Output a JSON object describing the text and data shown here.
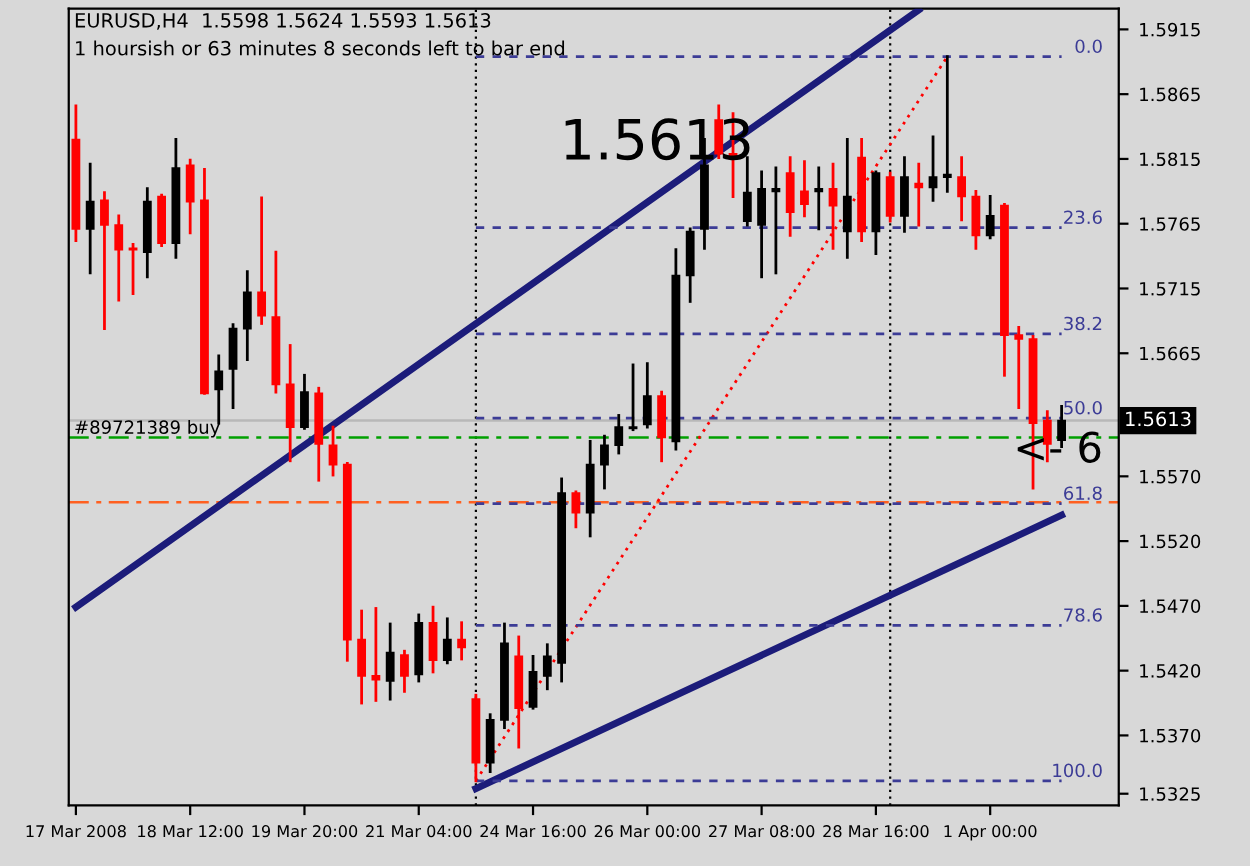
{
  "chart_data": {
    "type": "candlestick",
    "title": "EURUSD,H4  1.5598 1.5624 1.5593 1.5613",
    "subtitle": "1 hoursish or 63 minutes 8 seconds left to bar end",
    "categories": [
      "17 Mar 2008",
      null,
      null,
      null,
      null,
      null,
      null,
      null,
      "18 Mar 12:00",
      null,
      null,
      null,
      null,
      null,
      null,
      null,
      "19 Mar 20:00",
      null,
      null,
      null,
      null,
      null,
      null,
      null,
      "21 Mar 04:00",
      null,
      null,
      null,
      null,
      null,
      null,
      null,
      "24 Mar 16:00",
      null,
      null,
      null,
      null,
      null,
      null,
      null,
      "26 Mar 00:00",
      null,
      null,
      null,
      null,
      null,
      null,
      null,
      "27 Mar 08:00",
      null,
      null,
      null,
      null,
      null,
      null,
      null,
      "28 Mar 16:00",
      null,
      null,
      null,
      null,
      null,
      null,
      null,
      "1 Apr 00:00",
      null,
      null,
      null,
      null,
      null
    ],
    "ohlc": [
      [
        1.583,
        1.5856,
        1.5752,
        1.5761
      ],
      [
        1.5761,
        1.5811,
        1.5727,
        1.5782
      ],
      [
        1.5783,
        1.5789,
        1.5684,
        1.5764
      ],
      [
        1.5764,
        1.5771,
        1.5706,
        1.5745
      ],
      [
        1.5746,
        1.5749,
        1.5711,
        1.5745
      ],
      [
        1.5743,
        1.5792,
        1.5724,
        1.5782
      ],
      [
        1.5786,
        1.5787,
        1.5748,
        1.575
      ],
      [
        1.575,
        1.583,
        1.5739,
        1.5808
      ],
      [
        1.581,
        1.5814,
        1.5758,
        1.5782
      ],
      [
        1.5783,
        1.5807,
        1.5634,
        1.5634
      ],
      [
        1.5637,
        1.5663,
        1.5611,
        1.5651
      ],
      [
        1.5653,
        1.5687,
        1.5623,
        1.5684
      ],
      [
        1.5684,
        1.5728,
        1.566,
        1.5712
      ],
      [
        1.5712,
        1.5785,
        1.5688,
        1.5694
      ],
      [
        1.5693,
        1.5743,
        1.5635,
        1.5641
      ],
      [
        1.5641,
        1.5671,
        1.5582,
        1.5608
      ],
      [
        1.5608,
        1.5648,
        1.5607,
        1.5635
      ],
      [
        1.5634,
        1.5638,
        1.5567,
        1.5595
      ],
      [
        1.5594,
        1.5608,
        1.5571,
        1.5579
      ],
      [
        1.5579,
        1.558,
        1.5428,
        1.5444
      ],
      [
        1.5444,
        1.5466,
        1.5395,
        1.5416
      ],
      [
        1.5416,
        1.5468,
        1.5397,
        1.5413
      ],
      [
        1.5412,
        1.5456,
        1.5398,
        1.5434
      ],
      [
        1.5432,
        1.5435,
        1.5404,
        1.5416
      ],
      [
        1.5417,
        1.5463,
        1.5412,
        1.5457
      ],
      [
        1.5457,
        1.5469,
        1.5419,
        1.5428
      ],
      [
        1.5428,
        1.546,
        1.5426,
        1.5444
      ],
      [
        1.5444,
        1.5457,
        1.5429,
        1.5438
      ],
      [
        1.5398,
        1.5401,
        1.5335,
        1.5349
      ],
      [
        1.5349,
        1.5386,
        1.5342,
        1.5382
      ],
      [
        1.5382,
        1.5456,
        1.5376,
        1.5441
      ],
      [
        1.5431,
        1.5446,
        1.5361,
        1.5391
      ],
      [
        1.5392,
        1.5431,
        1.5391,
        1.5419
      ],
      [
        1.5416,
        1.544,
        1.5406,
        1.5431
      ],
      [
        1.5426,
        1.5568,
        1.5412,
        1.5557
      ],
      [
        1.5557,
        1.5558,
        1.5531,
        1.5542
      ],
      [
        1.5542,
        1.5597,
        1.5524,
        1.5579
      ],
      [
        1.5579,
        1.5601,
        1.5561,
        1.5594
      ],
      [
        1.5594,
        1.5617,
        1.5588,
        1.5608
      ],
      [
        1.5607,
        1.5656,
        1.5606,
        1.5608
      ],
      [
        1.561,
        1.5657,
        1.5608,
        1.5632
      ],
      [
        1.5632,
        1.5635,
        1.5582,
        1.56
      ],
      [
        1.5597,
        1.5745,
        1.5591,
        1.5725
      ],
      [
        1.5725,
        1.5761,
        1.5705,
        1.5759
      ],
      [
        1.5761,
        1.583,
        1.5746,
        1.581
      ],
      [
        1.5845,
        1.5856,
        1.5816,
        1.5819
      ],
      [
        1.5819,
        1.585,
        1.5786,
        1.5816
      ],
      [
        1.5767,
        1.5816,
        1.5764,
        1.5789
      ],
      [
        1.5764,
        1.5805,
        1.5724,
        1.5792
      ],
      [
        1.579,
        1.5808,
        1.5727,
        1.5792
      ],
      [
        1.5804,
        1.5816,
        1.5756,
        1.5774
      ],
      [
        1.579,
        1.5813,
        1.5771,
        1.578
      ],
      [
        1.579,
        1.5808,
        1.5761,
        1.5792
      ],
      [
        1.5792,
        1.5811,
        1.5746,
        1.5779
      ],
      [
        1.5759,
        1.583,
        1.5739,
        1.5786
      ],
      [
        1.5816,
        1.583,
        1.5752,
        1.5759
      ],
      [
        1.5759,
        1.5805,
        1.5742,
        1.5804
      ],
      [
        1.5801,
        1.5804,
        1.5767,
        1.5771
      ],
      [
        1.5771,
        1.5816,
        1.5759,
        1.5801
      ],
      [
        1.5796,
        1.5811,
        1.5764,
        1.5793
      ],
      [
        1.5793,
        1.5832,
        1.5783,
        1.5801
      ],
      [
        1.5801,
        1.5894,
        1.579,
        1.5803
      ],
      [
        1.5801,
        1.5816,
        1.5768,
        1.5786
      ],
      [
        1.5786,
        1.579,
        1.5746,
        1.5756
      ],
      [
        1.5756,
        1.5786,
        1.5754,
        1.5771
      ],
      [
        1.5779,
        1.578,
        1.5648,
        1.5679
      ],
      [
        1.5679,
        1.5685,
        1.5623,
        1.5676
      ],
      [
        1.5676,
        1.5678,
        1.5561,
        1.5611
      ],
      [
        1.5613,
        1.562,
        1.5582,
        1.5595
      ],
      [
        1.5598,
        1.5624,
        1.5593,
        1.5613
      ]
    ],
    "colors": [
      "#ff0000",
      "#000000",
      "#ff0000",
      "#ff0000",
      "#ff0000",
      "#000000",
      "#ff0000",
      "#000000",
      "#ff0000",
      "#ff0000",
      "#000000",
      "#000000",
      "#000000",
      "#ff0000",
      "#ff0000",
      "#ff0000",
      "#000000",
      "#ff0000",
      "#ff0000",
      "#ff0000",
      "#ff0000",
      "#ff0000",
      "#000000",
      "#ff0000",
      "#000000",
      "#ff0000",
      "#000000",
      "#ff0000",
      "#ff0000",
      "#000000",
      "#000000",
      "#ff0000",
      "#000000",
      "#000000",
      "#000000",
      "#ff0000",
      "#000000",
      "#000000",
      "#000000",
      "#000000",
      "#000000",
      "#ff0000",
      "#000000",
      "#000000",
      "#000000",
      "#ff0000",
      "#ff0000",
      "#000000",
      "#000000",
      "#000000",
      "#ff0000",
      "#ff0000",
      "#000000",
      "#ff0000",
      "#000000",
      "#ff0000",
      "#000000",
      "#ff0000",
      "#000000",
      "#ff0000",
      "#000000",
      "#000000",
      "#ff0000",
      "#ff0000",
      "#000000",
      "#ff0000",
      "#ff0000",
      "#ff0000",
      "#ff0000",
      "#000000"
    ],
    "series": [
      {
        "type": "line",
        "color": "#1c1c7a",
        "values": [
          1.5469,
          null,
          null,
          null,
          null,
          null,
          null,
          null,
          null,
          null,
          null,
          null,
          null,
          null,
          null,
          null,
          null,
          null,
          null,
          null,
          null,
          null,
          null,
          null,
          null,
          null,
          null,
          null,
          null,
          null,
          null,
          null,
          null,
          null,
          null,
          null,
          null,
          null,
          null,
          null,
          null,
          null,
          null,
          null,
          null,
          null,
          null,
          null,
          null,
          null,
          null,
          null,
          null,
          null,
          null,
          null,
          null,
          null,
          null,
          1.593,
          null,
          null,
          null,
          null,
          null,
          null,
          null,
          null,
          null,
          null
        ]
      },
      {
        "type": "line",
        "color": "#1c1c7a",
        "values": [
          null,
          null,
          null,
          null,
          null,
          null,
          null,
          null,
          null,
          null,
          null,
          null,
          null,
          null,
          null,
          null,
          null,
          null,
          null,
          null,
          null,
          null,
          null,
          null,
          null,
          null,
          null,
          null,
          1.5329,
          null,
          null,
          null,
          null,
          null,
          null,
          null,
          null,
          null,
          null,
          null,
          null,
          null,
          null,
          null,
          null,
          null,
          null,
          null,
          null,
          null,
          null,
          null,
          null,
          null,
          null,
          null,
          null,
          null,
          null,
          null,
          null,
          null,
          null,
          null,
          null,
          null,
          null,
          null,
          null,
          1.554
        ]
      },
      {
        "type": "line",
        "color": "#ff0000",
        "line_style": "dotted",
        "values": [
          null,
          null,
          null,
          null,
          null,
          null,
          null,
          null,
          null,
          null,
          null,
          null,
          null,
          null,
          null,
          null,
          null,
          null,
          null,
          null,
          null,
          null,
          null,
          null,
          null,
          null,
          null,
          null,
          1.5335,
          null,
          null,
          null,
          null,
          null,
          null,
          null,
          null,
          null,
          null,
          null,
          null,
          null,
          null,
          null,
          null,
          null,
          null,
          null,
          null,
          null,
          null,
          null,
          null,
          null,
          null,
          null,
          null,
          null,
          null,
          null,
          null,
          1.5894,
          null,
          null,
          null,
          null,
          null,
          null,
          null,
          null
        ]
      },
      {
        "type": "line",
        "name": "0.0",
        "color": "#3c3c96",
        "line_style": "dashed",
        "values": [
          null,
          null,
          null,
          null,
          null,
          null,
          null,
          null,
          null,
          null,
          null,
          null,
          null,
          null,
          null,
          null,
          null,
          null,
          null,
          null,
          null,
          null,
          null,
          null,
          null,
          null,
          null,
          null,
          1.5894,
          1.5894,
          1.5894,
          1.5894,
          1.5894,
          1.5894,
          1.5894,
          1.5894,
          1.5894,
          1.5894,
          1.5894,
          1.5894,
          1.5894,
          1.5894,
          1.5894,
          1.5894,
          1.5894,
          1.5894,
          1.5894,
          1.5894,
          1.5894,
          1.5894,
          1.5894,
          1.5894,
          1.5894,
          1.5894,
          1.5894,
          1.5894,
          1.5894,
          1.5894,
          1.5894,
          1.5894,
          1.5894,
          1.5894,
          1.5894,
          1.5894,
          1.5894,
          1.5894,
          1.5894,
          1.5894,
          1.5894,
          1.5894
        ]
      },
      {
        "type": "line",
        "name": "23.6",
        "color": "#3c3c96",
        "line_style": "dashed",
        "values": [
          null,
          null,
          null,
          null,
          null,
          null,
          null,
          null,
          null,
          null,
          null,
          null,
          null,
          null,
          null,
          null,
          null,
          null,
          null,
          null,
          null,
          null,
          null,
          null,
          null,
          null,
          null,
          null,
          1.5762,
          1.5762,
          1.5762,
          1.5762,
          1.5762,
          1.5762,
          1.5762,
          1.5762,
          1.5762,
          1.5762,
          1.5762,
          1.5762,
          1.5762,
          1.5762,
          1.5762,
          1.5762,
          1.5762,
          1.5762,
          1.5762,
          1.5762,
          1.5762,
          1.5762,
          1.5762,
          1.5762,
          1.5762,
          1.5762,
          1.5762,
          1.5762,
          1.5762,
          1.5762,
          1.5762,
          1.5762,
          1.5762,
          1.5762,
          1.5762,
          1.5762,
          1.5762,
          1.5762,
          1.5762,
          1.5762,
          1.5762,
          1.5762
        ]
      },
      {
        "type": "line",
        "name": "38.2",
        "color": "#3c3c96",
        "line_style": "dashed",
        "values": [
          null,
          null,
          null,
          null,
          null,
          null,
          null,
          null,
          null,
          null,
          null,
          null,
          null,
          null,
          null,
          null,
          null,
          null,
          null,
          null,
          null,
          null,
          null,
          null,
          null,
          null,
          null,
          null,
          1.568,
          1.568,
          1.568,
          1.568,
          1.568,
          1.568,
          1.568,
          1.568,
          1.568,
          1.568,
          1.568,
          1.568,
          1.568,
          1.568,
          1.568,
          1.568,
          1.568,
          1.568,
          1.568,
          1.568,
          1.568,
          1.568,
          1.568,
          1.568,
          1.568,
          1.568,
          1.568,
          1.568,
          1.568,
          1.568,
          1.568,
          1.568,
          1.568,
          1.568,
          1.568,
          1.568,
          1.568,
          1.568,
          1.568,
          1.568,
          1.568,
          1.568
        ]
      },
      {
        "type": "line",
        "name": "50.0",
        "color": "#3c3c96",
        "line_style": "dashed",
        "values": [
          null,
          null,
          null,
          null,
          null,
          null,
          null,
          null,
          null,
          null,
          null,
          null,
          null,
          null,
          null,
          null,
          null,
          null,
          null,
          null,
          null,
          null,
          null,
          null,
          null,
          null,
          null,
          null,
          1.5615,
          1.5615,
          1.5615,
          1.5615,
          1.5615,
          1.5615,
          1.5615,
          1.5615,
          1.5615,
          1.5615,
          1.5615,
          1.5615,
          1.5615,
          1.5615,
          1.5615,
          1.5615,
          1.5615,
          1.5615,
          1.5615,
          1.5615,
          1.5615,
          1.5615,
          1.5615,
          1.5615,
          1.5615,
          1.5615,
          1.5615,
          1.5615,
          1.5615,
          1.5615,
          1.5615,
          1.5615,
          1.5615,
          1.5615,
          1.5615,
          1.5615,
          1.5615,
          1.5615,
          1.5615,
          1.5615,
          1.5615,
          1.5615
        ]
      },
      {
        "type": "line",
        "name": "61.8",
        "color": "#3c3c96",
        "line_style": "dashed",
        "values": [
          null,
          null,
          null,
          null,
          null,
          null,
          null,
          null,
          null,
          null,
          null,
          null,
          null,
          null,
          null,
          null,
          null,
          null,
          null,
          null,
          null,
          null,
          null,
          null,
          null,
          null,
          null,
          null,
          1.5549,
          1.5549,
          1.5549,
          1.5549,
          1.5549,
          1.5549,
          1.5549,
          1.5549,
          1.5549,
          1.5549,
          1.5549,
          1.5549,
          1.5549,
          1.5549,
          1.5549,
          1.5549,
          1.5549,
          1.5549,
          1.5549,
          1.5549,
          1.5549,
          1.5549,
          1.5549,
          1.5549,
          1.5549,
          1.5549,
          1.5549,
          1.5549,
          1.5549,
          1.5549,
          1.5549,
          1.5549,
          1.5549,
          1.5549,
          1.5549,
          1.5549,
          1.5549,
          1.5549,
          1.5549,
          1.5549,
          1.5549,
          1.5549
        ]
      },
      {
        "type": "line",
        "name": "78.6",
        "color": "#3c3c96",
        "line_style": "dashed",
        "values": [
          null,
          null,
          null,
          null,
          null,
          null,
          null,
          null,
          null,
          null,
          null,
          null,
          null,
          null,
          null,
          null,
          null,
          null,
          null,
          null,
          null,
          null,
          null,
          null,
          null,
          null,
          null,
          null,
          1.5455,
          1.5455,
          1.5455,
          1.5455,
          1.5455,
          1.5455,
          1.5455,
          1.5455,
          1.5455,
          1.5455,
          1.5455,
          1.5455,
          1.5455,
          1.5455,
          1.5455,
          1.5455,
          1.5455,
          1.5455,
          1.5455,
          1.5455,
          1.5455,
          1.5455,
          1.5455,
          1.5455,
          1.5455,
          1.5455,
          1.5455,
          1.5455,
          1.5455,
          1.5455,
          1.5455,
          1.5455,
          1.5455,
          1.5455,
          1.5455,
          1.5455,
          1.5455,
          1.5455,
          1.5455,
          1.5455,
          1.5455,
          1.5455
        ]
      },
      {
        "type": "line",
        "name": "100.0",
        "color": "#3c3c96",
        "line_style": "dashed",
        "values": [
          null,
          null,
          null,
          null,
          null,
          null,
          null,
          null,
          null,
          null,
          null,
          null,
          null,
          null,
          null,
          null,
          null,
          null,
          null,
          null,
          null,
          null,
          null,
          null,
          null,
          null,
          null,
          null,
          1.5335,
          1.5335,
          1.5335,
          1.5335,
          1.5335,
          1.5335,
          1.5335,
          1.5335,
          1.5335,
          1.5335,
          1.5335,
          1.5335,
          1.5335,
          1.5335,
          1.5335,
          1.5335,
          1.5335,
          1.5335,
          1.5335,
          1.5335,
          1.5335,
          1.5335,
          1.5335,
          1.5335,
          1.5335,
          1.5335,
          1.5335,
          1.5335,
          1.5335,
          1.5335,
          1.5335,
          1.5335,
          1.5335,
          1.5335,
          1.5335,
          1.5335,
          1.5335,
          1.5335,
          1.5335,
          1.5335,
          1.5335,
          1.5335
        ]
      }
    ],
    "ylim": [
      1.5316,
      1.5931
    ],
    "yticks": [
      1.5915,
      1.5865,
      1.5815,
      1.5765,
      1.5715,
      1.5665,
      {
        "value": 1.557,
        "label": "1.5570"
      },
      {
        "value": 1.552,
        "label": "1.5520"
      },
      {
        "value": 1.547,
        "label": "1.5470"
      },
      {
        "value": 1.542,
        "label": "1.5420"
      },
      {
        "value": 1.537,
        "label": "1.5370"
      },
      1.5325
    ],
    "ref_lines": [
      {
        "axis": "y",
        "value": 1.56,
        "label": "#89721389 buy",
        "color": "#00a000",
        "line_style": "dashdot"
      },
      {
        "axis": "y",
        "value": 1.555,
        "label": null,
        "color": "#ff6020",
        "line_style": "dashdot"
      },
      {
        "axis": "y",
        "value": 1.5613,
        "label": "1.5613",
        "color": "#b8b8b8",
        "line_style": "solid"
      }
    ],
    "annotations": [
      "1.5613",
      "<- 6"
    ],
    "grid": false,
    "legend": false
  }
}
